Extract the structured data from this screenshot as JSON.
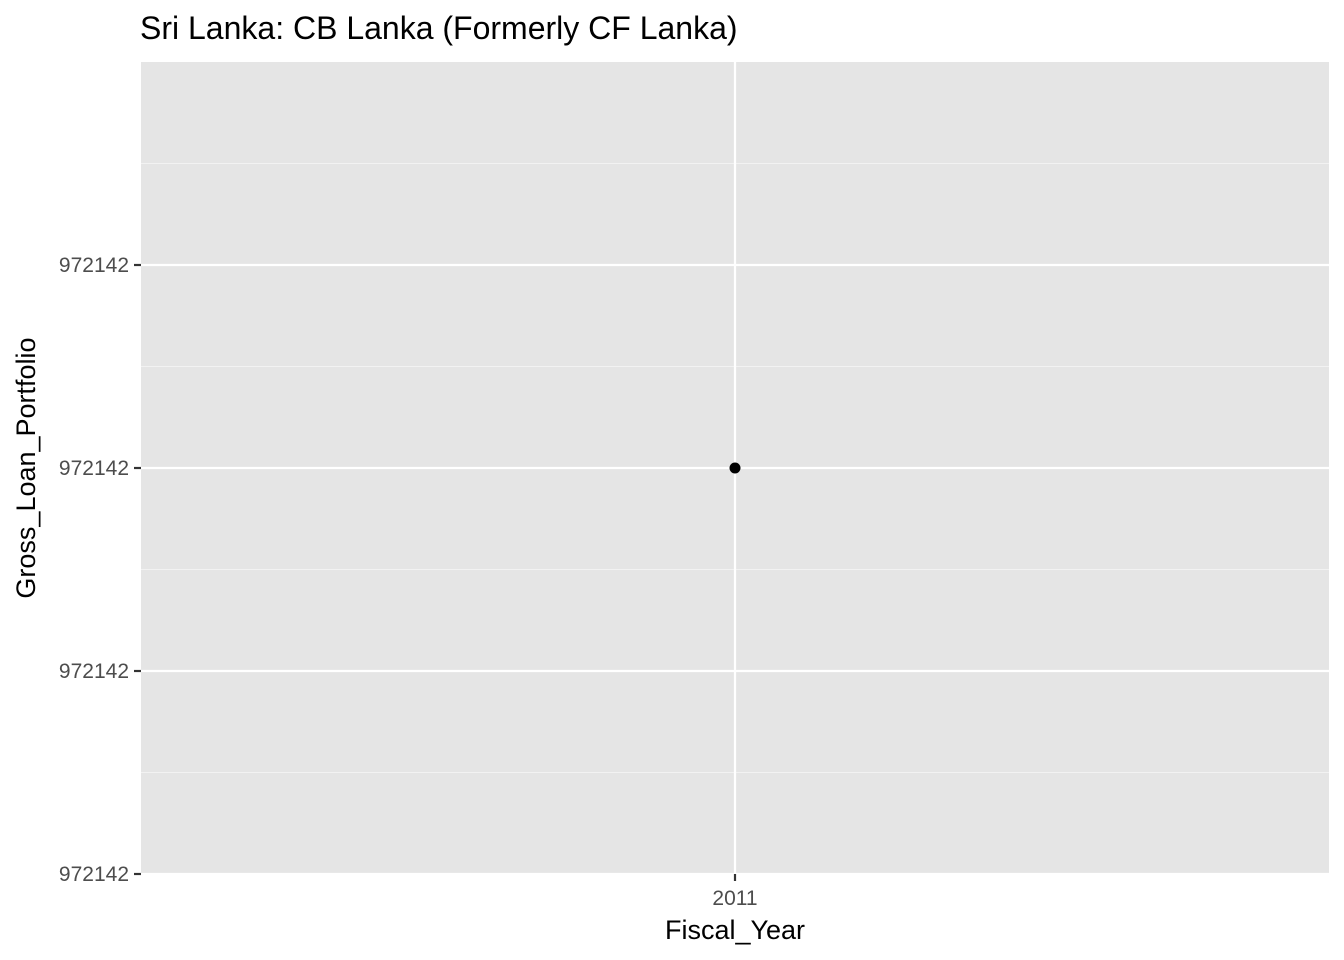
{
  "chart_data": {
    "type": "scatter",
    "title": "Sri Lanka:  CB Lanka (Formerly CF Lanka)",
    "xlabel": "Fiscal_Year",
    "ylabel": "Gross_Loan_Portfolio",
    "x_tick_labels": [
      "2011"
    ],
    "y_tick_labels": [
      "972142",
      "972142",
      "972142",
      "972142"
    ],
    "x_categories": [
      "2011"
    ],
    "points": [
      {
        "x": "2011",
        "y": 972142
      }
    ],
    "y_break_levels": [
      -1,
      -0.5,
      0,
      0.5
    ],
    "y_point_level": 0,
    "y_level_range": [
      -1,
      1
    ],
    "grid": true,
    "colors": {
      "panel_background": "#e5e5e5",
      "grid_major": "#ffffff",
      "grid_minor": "#f2f2f2",
      "point": "#000000",
      "tick": "#333333",
      "tick_label": "#4d4d4d"
    }
  }
}
